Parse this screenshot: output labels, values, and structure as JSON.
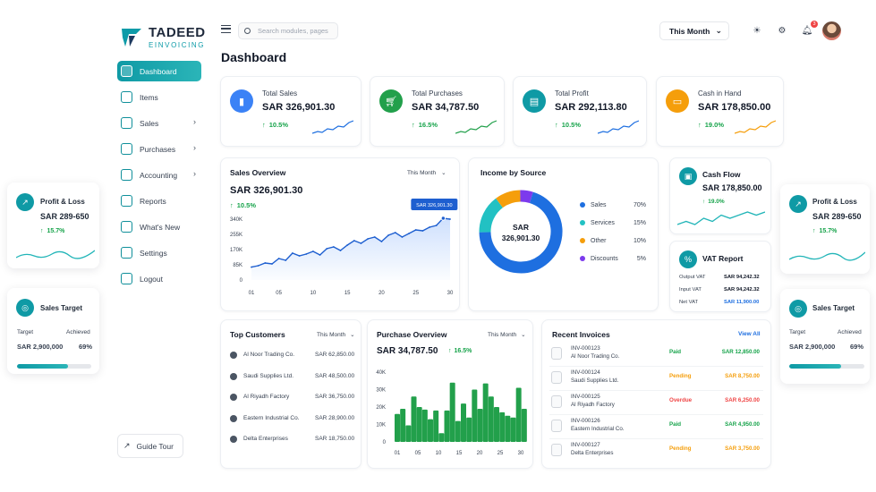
{
  "brand": {
    "name": "TADEED",
    "tagline": "EINVOICING",
    "accent": "#0f9aa5"
  },
  "sidebar": {
    "items": [
      {
        "label": "Dashboard",
        "icon": "home-icon",
        "active": true,
        "has_arrow": false
      },
      {
        "label": "Items",
        "icon": "box-icon",
        "active": false,
        "has_arrow": false
      },
      {
        "label": "Sales",
        "icon": "cart-icon",
        "active": false,
        "has_arrow": true
      },
      {
        "label": "Purchases",
        "icon": "receipt-icon",
        "active": false,
        "has_arrow": true
      },
      {
        "label": "Accounting",
        "icon": "book-icon",
        "active": false,
        "has_arrow": true
      },
      {
        "label": "Reports",
        "icon": "report-icon",
        "active": false,
        "has_arrow": false
      },
      {
        "label": "What's New",
        "icon": "megaphone-icon",
        "active": false,
        "has_arrow": false
      },
      {
        "label": "Settings",
        "icon": "gear-icon",
        "active": false,
        "has_arrow": false
      },
      {
        "label": "Logout",
        "icon": "logout-icon",
        "active": false,
        "has_arrow": false
      }
    ],
    "guide_tour": "Guide Tour"
  },
  "topbar": {
    "search_placeholder": "Search modules, pages",
    "period": "This Month",
    "notification_count": "3"
  },
  "page_title": "Dashboard",
  "stats": [
    {
      "label": "Total Sales",
      "value": "SAR 326,901.30",
      "delta": "10.5%",
      "color": "#3b82f6",
      "icon": "bar-chart-icon"
    },
    {
      "label": "Total Purchases",
      "value": "SAR 34,787.50",
      "delta": "16.5%",
      "color": "#22a04b",
      "icon": "cart-icon"
    },
    {
      "label": "Total Profit",
      "value": "SAR 292,113.80",
      "delta": "10.5%",
      "color": "#0f9aa5",
      "icon": "wallet-icon"
    },
    {
      "label": "Cash in Hand",
      "value": "SAR 178,850.00",
      "delta": "19.0%",
      "color": "#f59e0b",
      "icon": "cash-icon"
    }
  ],
  "sales_overview": {
    "title": "Sales Overview",
    "period": "This Month",
    "value": "SAR 326,901.30",
    "delta": "10.5%",
    "tooltip": "SAR 326,901.30"
  },
  "income_by_source": {
    "title": "Income by Source",
    "center_line1": "SAR",
    "center_line2": "326,901.30",
    "items": [
      {
        "label": "Sales",
        "pct": "70%",
        "color": "#1e6fe0"
      },
      {
        "label": "Services",
        "pct": "15%",
        "color": "#22c1c3"
      },
      {
        "label": "Other",
        "pct": "10%",
        "color": "#f59e0b"
      },
      {
        "label": "Discounts",
        "pct": "5%",
        "color": "#7c3aed"
      }
    ]
  },
  "cash_flow": {
    "title": "Cash Flow",
    "value": "SAR 178,850.00",
    "delta": "19.0%"
  },
  "vat_report": {
    "title": "VAT Report",
    "rows": [
      {
        "label": "Output VAT",
        "value": "SAR 94,242.32",
        "color": "#111827"
      },
      {
        "label": "Input VAT",
        "value": "SAR 94,242.32",
        "color": "#111827"
      },
      {
        "label": "Net VAT",
        "value": "SAR 11,900.00",
        "color": "#1e6fe0"
      }
    ]
  },
  "top_customers": {
    "title": "Top Customers",
    "period": "This Month",
    "rows": [
      {
        "name": "Al Noor Trading Co.",
        "amount": "SAR 62,850.00"
      },
      {
        "name": "Saudi Supplies Ltd.",
        "amount": "SAR 48,500.00"
      },
      {
        "name": "Al Riyadh Factory",
        "amount": "SAR 36,750.00"
      },
      {
        "name": "Eastern Industrial Co.",
        "amount": "SAR 28,900.00"
      },
      {
        "name": "Delta Enterprises",
        "amount": "SAR 18,750.00"
      }
    ]
  },
  "purchase_overview": {
    "title": "Purchase Overview",
    "period": "This Month",
    "value": "SAR 34,787.50",
    "delta": "16.5%"
  },
  "recent_invoices": {
    "title": "Recent Invoices",
    "view_all": "View All",
    "rows": [
      {
        "id": "INV-000123",
        "customer": "Al Noor Trading Co.",
        "status": "Paid",
        "status_color": "#16a34a",
        "amount": "SAR 12,850.00",
        "amount_color": "#16a34a"
      },
      {
        "id": "INV-000124",
        "customer": "Saudi Supplies Ltd.",
        "status": "Pending",
        "status_color": "#f59e0b",
        "amount": "SAR 8,750.00",
        "amount_color": "#f59e0b"
      },
      {
        "id": "INV-000125",
        "customer": "Al Riyadh Factory",
        "status": "Overdue",
        "status_color": "#ef4444",
        "amount": "SAR 6,250.00",
        "amount_color": "#ef4444"
      },
      {
        "id": "INV-000126",
        "customer": "Eastern Industrial Co.",
        "status": "Paid",
        "status_color": "#16a34a",
        "amount": "SAR 4,950.00",
        "amount_color": "#16a34a"
      },
      {
        "id": "INV-000127",
        "customer": "Delta Enterprises",
        "status": "Pending",
        "status_color": "#f59e0b",
        "amount": "SAR 3,750.00",
        "amount_color": "#f59e0b"
      }
    ]
  },
  "floating": {
    "profit_loss": {
      "title": "Profit & Loss",
      "value": "SAR 289-650",
      "delta": "15.7%"
    },
    "sales_target": {
      "title": "Sales Target",
      "target_label": "Target",
      "achieved_label": "Achieved",
      "target_value": "SAR 2,900,000",
      "achieved_pct": "69%",
      "progress": 0.69
    }
  },
  "chart_data": [
    {
      "type": "line",
      "title": "Sales Overview",
      "x": [
        1,
        2,
        3,
        4,
        5,
        6,
        7,
        8,
        9,
        10,
        11,
        12,
        13,
        14,
        15,
        16,
        17,
        18,
        19,
        20,
        21,
        22,
        23,
        24,
        25,
        26,
        27,
        28,
        29,
        30
      ],
      "x_ticks": [
        "01",
        "05",
        "10",
        "15",
        "20",
        "25",
        "30"
      ],
      "y_ticks": [
        "0",
        "85K",
        "170K",
        "255K",
        "340K"
      ],
      "ylim": [
        0,
        340000
      ],
      "series": [
        {
          "values": [
            72000,
            80000,
            95000,
            90000,
            120000,
            110000,
            150000,
            135000,
            145000,
            160000,
            140000,
            175000,
            185000,
            165000,
            195000,
            220000,
            205000,
            230000,
            240000,
            215000,
            250000,
            265000,
            240000,
            260000,
            280000,
            275000,
            295000,
            305000,
            345000,
            340000
          ]
        }
      ]
    },
    {
      "type": "pie",
      "title": "Income by Source",
      "categories": [
        "Sales",
        "Services",
        "Other",
        "Discounts"
      ],
      "values": [
        70,
        15,
        10,
        5
      ]
    },
    {
      "type": "bar",
      "title": "Purchase Overview",
      "x_ticks": [
        "01",
        "05",
        "10",
        "15",
        "20",
        "25",
        "30"
      ],
      "y_ticks": [
        "0",
        "10K",
        "20K",
        "30K",
        "40K"
      ],
      "ylim": [
        0,
        40000
      ],
      "values": [
        16000,
        19000,
        9500,
        26000,
        20000,
        18500,
        13000,
        18000,
        5000,
        18000,
        34000,
        12000,
        22000,
        14000,
        30000,
        19000,
        33500,
        26000,
        20000,
        17000,
        15000,
        14000,
        31000,
        19000
      ]
    },
    {
      "type": "line",
      "title": "Cash Flow sparkline",
      "values": [
        5,
        6,
        5,
        7,
        6,
        8,
        7,
        8,
        9,
        8,
        9
      ]
    }
  ]
}
